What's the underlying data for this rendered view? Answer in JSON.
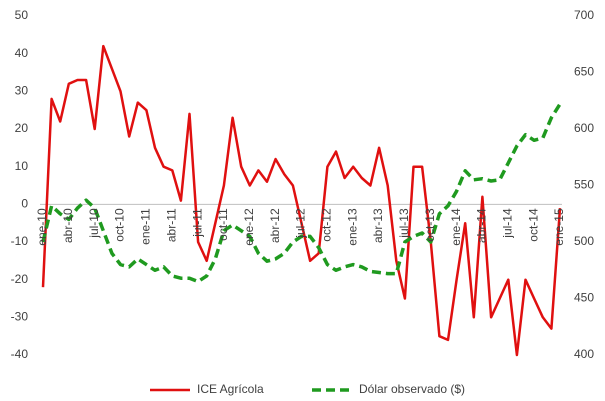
{
  "chart_data": {
    "type": "line",
    "categories": [
      "ene-10",
      null,
      null,
      "abr-10",
      null,
      null,
      "jul-10",
      null,
      null,
      "oct-10",
      null,
      null,
      "ene-11",
      null,
      null,
      "abr-11",
      null,
      null,
      "jul-11",
      null,
      null,
      "oct-11",
      null,
      null,
      "ene-12",
      null,
      null,
      "abr-12",
      null,
      null,
      "jul-12",
      null,
      null,
      "oct-12",
      null,
      null,
      "ene-13",
      null,
      null,
      "abr-13",
      null,
      null,
      "jul-13",
      null,
      null,
      "oct-13",
      null,
      null,
      "ene-14",
      null,
      null,
      "abr-14",
      null,
      null,
      "jul-14",
      null,
      null,
      "oct-14",
      null,
      null,
      "ene-15"
    ],
    "series": [
      {
        "name": "ICE Agrícola",
        "color": "#e01010",
        "dashed": false,
        "values": [
          -22,
          28,
          22,
          32,
          33,
          33,
          20,
          42,
          36,
          30,
          18,
          27,
          25,
          15,
          10,
          9,
          1,
          24,
          -10,
          -15,
          -5,
          5,
          23,
          10,
          5,
          9,
          6,
          12,
          8,
          5,
          -5,
          -15,
          -13,
          10,
          14,
          7,
          10,
          7,
          5,
          15,
          5,
          -15,
          -25,
          10,
          10,
          -10,
          -35,
          -36,
          -20,
          -5,
          -30,
          2,
          -30,
          -25,
          -20,
          -40,
          -20,
          -25,
          -30,
          -33,
          -1
        ]
      },
      {
        "name": "Dólar observado  ($)",
        "color": "#1f9a1f",
        "dashed": true,
        "axis": "y2",
        "values": [
          500,
          532,
          525,
          520,
          530,
          537,
          530,
          510,
          490,
          480,
          478,
          485,
          480,
          475,
          478,
          470,
          468,
          468,
          465,
          470,
          485,
          510,
          515,
          510,
          505,
          490,
          483,
          485,
          490,
          500,
          505,
          505,
          495,
          480,
          475,
          478,
          480,
          478,
          474,
          473,
          472,
          472,
          500,
          505,
          508,
          500,
          525,
          532,
          545,
          563,
          555,
          556,
          554,
          555,
          570,
          585,
          595,
          590,
          592,
          610,
          622
        ]
      }
    ],
    "ylim": [
      -40,
      50
    ],
    "yticks": [
      -40,
      -30,
      -20,
      -10,
      0,
      10,
      20,
      30,
      40,
      50
    ],
    "y2lim": [
      400,
      700
    ],
    "y2ticks": [
      400,
      450,
      500,
      550,
      600,
      650,
      700
    ],
    "legend": "bottom"
  }
}
